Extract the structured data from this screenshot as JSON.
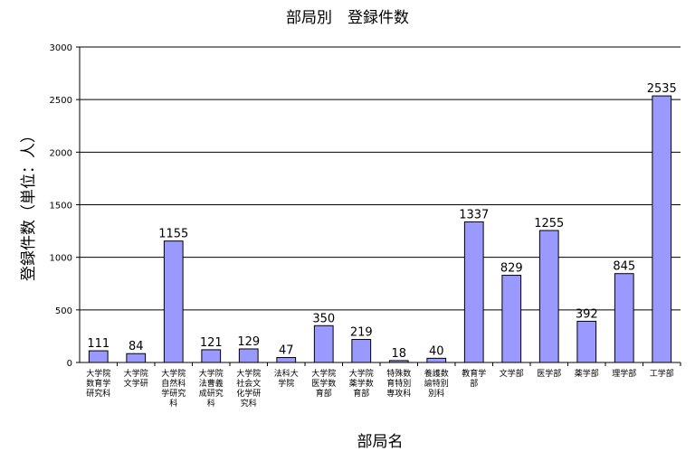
{
  "chart_data": {
    "type": "bar",
    "title": "部局別　登録件数",
    "xlabel": "部局名",
    "ylabel": "登録件数（単位：人）",
    "ylim": [
      0,
      3000
    ],
    "yticks": [
      "0",
      "500",
      "1000",
      "1500",
      "2000",
      "2500",
      "3000"
    ],
    "grid": true,
    "bar_color": "#9999ff",
    "categories": [
      [
        "大学院",
        "数育学",
        "研究科"
      ],
      [
        "大学院",
        "文学研"
      ],
      [
        "大学院",
        "自然科",
        "学研究",
        "科"
      ],
      [
        "大学院",
        "法曹義",
        "成研究",
        "科"
      ],
      [
        "大学院",
        "社会文",
        "化学研",
        "究科"
      ],
      [
        "法科大",
        "学院"
      ],
      [
        "大学院",
        "医学数",
        "育部"
      ],
      [
        "大学院",
        "薬学数",
        "育部"
      ],
      [
        "特殊数",
        "育特別",
        "専攻科"
      ],
      [
        "養護数",
        "諭特別",
        "別科"
      ],
      [
        "教育学",
        "部"
      ],
      [
        "文学部"
      ],
      [
        "医学部"
      ],
      [
        "薬学部"
      ],
      [
        "理学部"
      ],
      [
        "工学部"
      ]
    ],
    "values": [
      111,
      84,
      1155,
      121,
      129,
      47,
      350,
      219,
      18,
      40,
      1337,
      829,
      1255,
      392,
      845,
      2535
    ],
    "value_labels": [
      "111",
      "84",
      "1155",
      "121",
      "129",
      "47",
      "350",
      "219",
      "18",
      "40",
      "1337",
      "829",
      "1255",
      "392",
      "845",
      "2535"
    ]
  }
}
